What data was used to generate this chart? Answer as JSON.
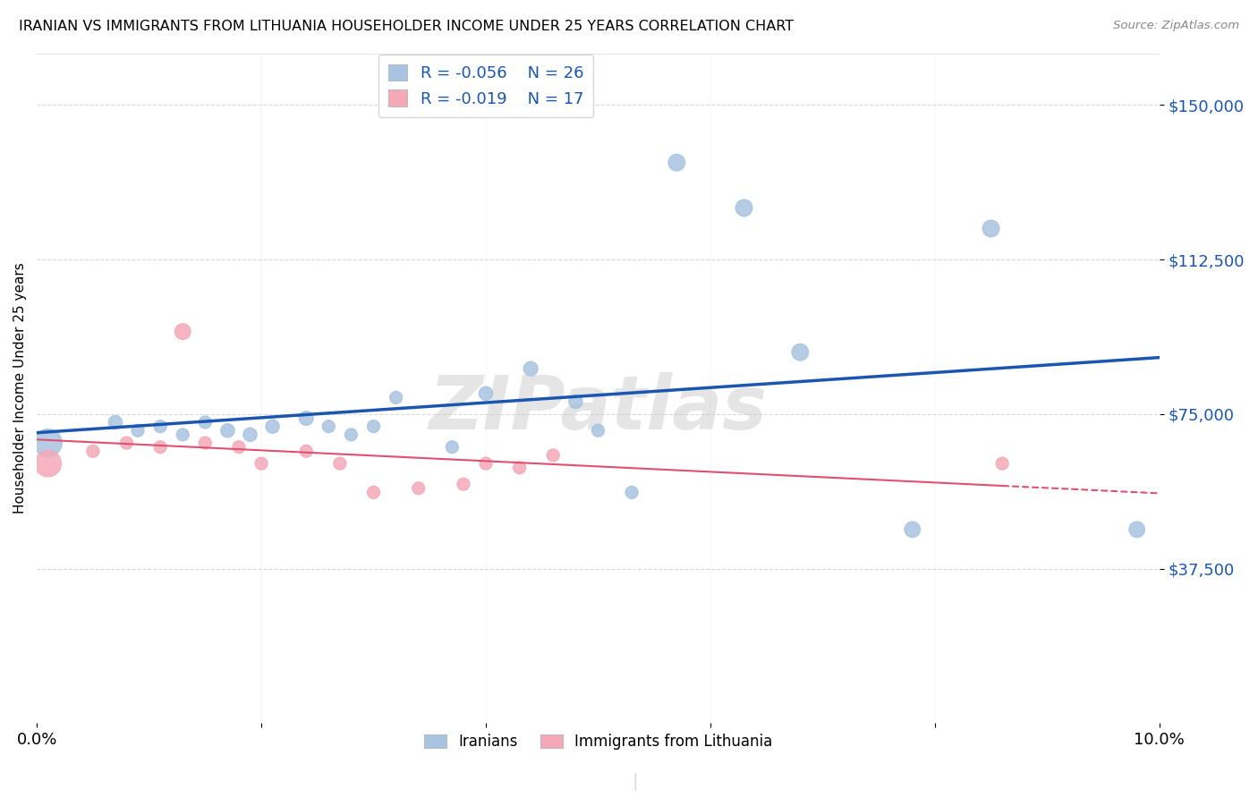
{
  "title": "IRANIAN VS IMMIGRANTS FROM LITHUANIA HOUSEHOLDER INCOME UNDER 25 YEARS CORRELATION CHART",
  "source": "Source: ZipAtlas.com",
  "ylabel": "Householder Income Under 25 years",
  "watermark": "ZIPatlas",
  "legend_iranians": "Iranians",
  "legend_lithuania": "Immigrants from Lithuania",
  "R_iranians": "-0.056",
  "N_iranians": "26",
  "R_lithuania": "-0.019",
  "N_lithuania": "17",
  "iranians_color": "#a8c4e0",
  "lithuania_color": "#f4a8b8",
  "trend_iranians_color": "#1a56b0",
  "trend_lithuania_color": "#e05070",
  "ytick_labels": [
    "$150,000",
    "$112,500",
    "$75,000",
    "$37,500"
  ],
  "ytick_values": [
    150000,
    112500,
    75000,
    37500
  ],
  "ymin": 0,
  "ymax": 162500,
  "xmin": 0.0,
  "xmax": 0.1,
  "iranians_x": [
    0.001,
    0.007,
    0.009,
    0.011,
    0.013,
    0.015,
    0.017,
    0.019,
    0.021,
    0.024,
    0.026,
    0.028,
    0.03,
    0.032,
    0.037,
    0.04,
    0.044,
    0.048,
    0.05,
    0.053,
    0.057,
    0.063,
    0.068,
    0.078,
    0.085,
    0.098
  ],
  "iranians_y": [
    68000,
    73000,
    71000,
    72000,
    70000,
    73000,
    71000,
    70000,
    72000,
    74000,
    72000,
    70000,
    72000,
    79000,
    67000,
    80000,
    86000,
    78000,
    71000,
    56000,
    136000,
    125000,
    90000,
    47000,
    120000,
    47000
  ],
  "iranians_size": [
    500,
    120,
    100,
    100,
    100,
    100,
    120,
    120,
    120,
    130,
    100,
    100,
    100,
    100,
    100,
    120,
    130,
    120,
    100,
    100,
    180,
    180,
    180,
    160,
    180,
    160
  ],
  "lithuania_x": [
    0.001,
    0.005,
    0.008,
    0.011,
    0.013,
    0.015,
    0.018,
    0.02,
    0.024,
    0.027,
    0.03,
    0.034,
    0.038,
    0.04,
    0.043,
    0.046,
    0.086
  ],
  "lithuania_y": [
    63000,
    66000,
    68000,
    67000,
    95000,
    68000,
    67000,
    63000,
    66000,
    63000,
    56000,
    57000,
    58000,
    63000,
    62000,
    65000,
    63000
  ],
  "lithuania_size": [
    450,
    100,
    100,
    100,
    160,
    100,
    100,
    100,
    100,
    100,
    100,
    100,
    100,
    100,
    100,
    100,
    100
  ],
  "background_color": "#ffffff",
  "grid_color": "#d8d8d8"
}
